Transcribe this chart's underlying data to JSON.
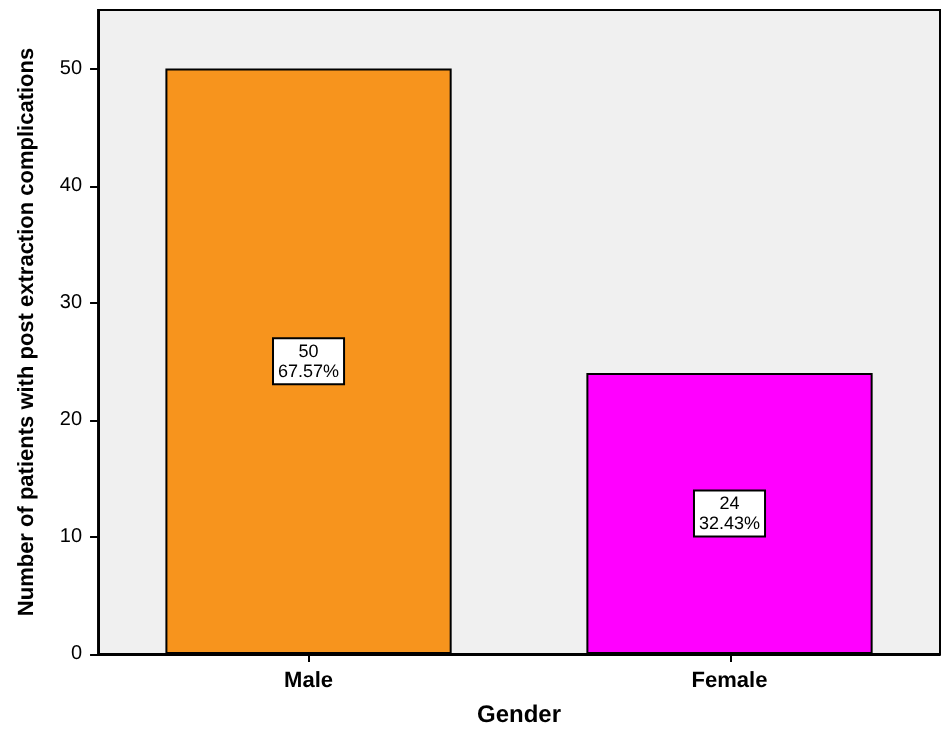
{
  "chart_data": {
    "type": "bar",
    "xlabel": "Gender",
    "ylabel": "Number of patients with post extraction complications",
    "categories": [
      "Male",
      "Female"
    ],
    "values": [
      50,
      24
    ],
    "colors": [
      "#f7941d",
      "#ff00ff"
    ],
    "value_labels": [
      "50\n67.57%",
      "24\n32.43%"
    ],
    "ylim": [
      0,
      55
    ],
    "yticks": [
      0,
      10,
      20,
      30,
      40,
      50
    ],
    "grid": false
  }
}
